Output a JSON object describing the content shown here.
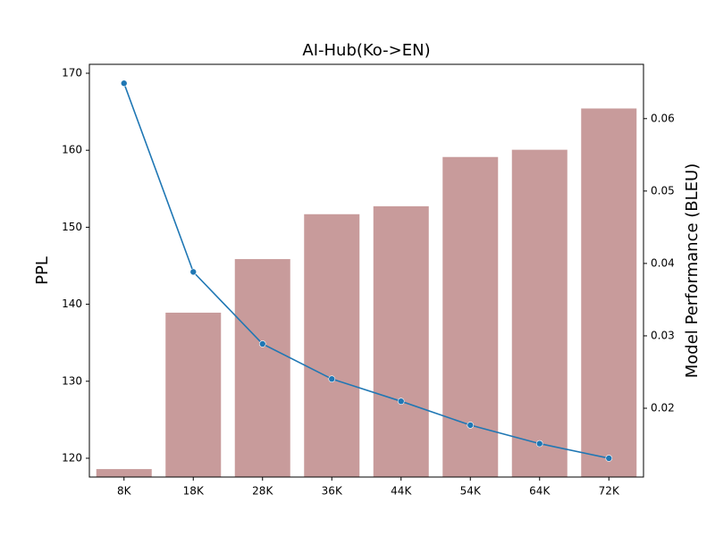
{
  "chart_data": {
    "type": "bar-line",
    "title": "AI-Hub(Ko->EN)",
    "y_label": "PPL",
    "y2_label": "Model Performance (BLEU)",
    "categories": [
      "8K",
      "18K",
      "28K",
      "36K",
      "44K",
      "54K",
      "64K",
      "72K"
    ],
    "series": [
      {
        "type": "bar",
        "axis": "y2",
        "color": "#c89b9b",
        "values": [
          0.0116,
          0.0332,
          0.0406,
          0.0468,
          0.0479,
          0.0547,
          0.0557,
          0.0614
        ]
      },
      {
        "type": "line",
        "axis": "y",
        "color": "#1f77b4",
        "values": [
          168.7,
          144.2,
          134.85,
          130.3,
          127.4,
          124.3,
          121.9,
          120.0
        ]
      }
    ],
    "ylim": [
      117.56,
      171.16
    ],
    "yticks": [
      120,
      130,
      140,
      150,
      160,
      170
    ],
    "y2lim": [
      0.0105,
      0.0675
    ],
    "y2ticks": [
      0.02,
      0.03,
      0.04,
      0.05,
      0.06
    ]
  }
}
